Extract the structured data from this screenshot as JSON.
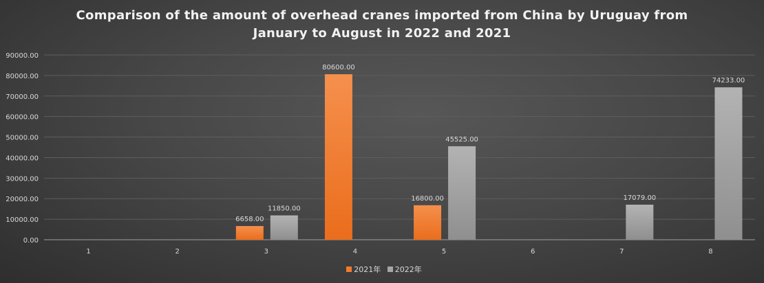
{
  "chart_data": {
    "type": "bar",
    "title": "Comparison of the amount of overhead cranes imported from China by Uruguay from January to August in 2022 and 2021",
    "title_lines": [
      "Comparison of the amount of overhead cranes imported from China by Uruguay from",
      "January to August in 2022 and 2021"
    ],
    "categories": [
      "1",
      "2",
      "3",
      "4",
      "5",
      "6",
      "7",
      "8"
    ],
    "series": [
      {
        "name": "2021年",
        "color": "#f07b2e",
        "values": [
          null,
          null,
          6658.0,
          80600.0,
          16800.0,
          null,
          null,
          null
        ]
      },
      {
        "name": "2022年",
        "color": "#a6a6a6",
        "values": [
          null,
          null,
          11850.0,
          null,
          45525.0,
          null,
          17079.0,
          74233.0
        ]
      }
    ],
    "yticks": [
      "0.00",
      "10000.00",
      "20000.00",
      "30000.00",
      "40000.00",
      "50000.00",
      "60000.00",
      "70000.00",
      "80000.00",
      "90000.00"
    ],
    "ylim": [
      0,
      90000
    ],
    "grid": true,
    "legend_position": "bottom",
    "data_labels": true
  }
}
